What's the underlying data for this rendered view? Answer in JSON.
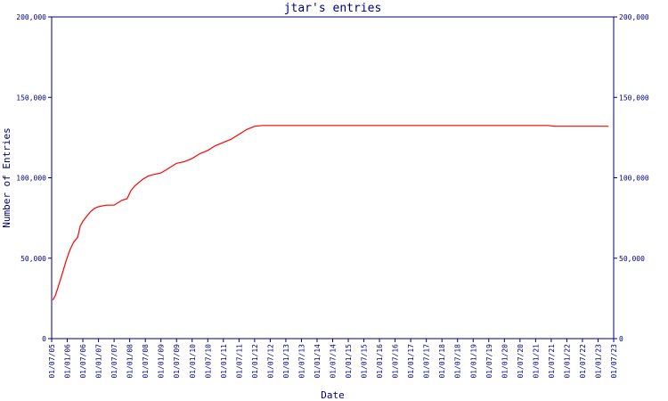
{
  "chart_data": {
    "type": "line",
    "title": "jtar's entries",
    "xlabel": "Date",
    "ylabel": "Number of Entries",
    "ylim": [
      0,
      200000
    ],
    "y_ticks": [
      0,
      50000,
      100000,
      150000,
      200000
    ],
    "y_tick_labels": [
      "0",
      "50,000",
      "100,000",
      "150,000",
      "200,000"
    ],
    "x_tick_labels": [
      "01/07/05",
      "01/01/06",
      "01/07/06",
      "01/01/07",
      "01/07/07",
      "01/01/08",
      "01/07/08",
      "01/01/09",
      "01/07/09",
      "01/01/10",
      "01/07/10",
      "01/01/11",
      "01/07/11",
      "01/01/12",
      "01/07/12",
      "01/01/13",
      "01/07/13",
      "01/01/14",
      "01/07/14",
      "01/01/15",
      "01/07/15",
      "01/01/16",
      "01/07/16",
      "01/01/17",
      "01/07/17",
      "01/01/18",
      "01/07/18",
      "01/01/19",
      "01/07/19",
      "01/01/20",
      "01/07/20",
      "01/01/21",
      "01/07/21",
      "01/01/22",
      "01/07/22",
      "01/01/23",
      "01/07/23"
    ],
    "grid": false,
    "colors": {
      "axis": "#000080",
      "line": "#ff0000",
      "text": "#000080"
    },
    "series": [
      {
        "x": [
          "2005-07-15",
          "2005-08-15",
          "2005-09-15",
          "2005-11-01",
          "2005-12-15",
          "2006-02-01",
          "2006-03-15",
          "2006-05-01",
          "2006-06-01",
          "2006-07-01",
          "2006-08-15",
          "2006-10-01",
          "2006-11-15",
          "2007-01-01",
          "2007-02-15",
          "2007-04-01",
          "2007-07-01",
          "2007-10-01",
          "2007-12-01",
          "2008-01-15",
          "2008-03-01",
          "2008-04-15",
          "2008-06-01",
          "2008-08-01",
          "2008-10-01",
          "2009-01-01",
          "2009-04-01",
          "2009-07-01",
          "2009-10-01",
          "2010-01-01",
          "2010-04-01",
          "2010-07-01",
          "2010-10-01",
          "2011-01-01",
          "2011-04-01",
          "2011-07-01",
          "2011-10-01",
          "2012-01-01",
          "2012-04-01",
          "2012-07-01",
          "2012-09-01",
          "2013-01-01",
          "2015-01-01",
          "2017-01-01",
          "2019-01-01",
          "2021-06-01",
          "2021-08-01",
          "2022-01-01",
          "2023-05-01"
        ],
        "y": [
          24000,
          27000,
          32000,
          40000,
          48000,
          55000,
          60000,
          63000,
          70000,
          73000,
          76000,
          79000,
          81000,
          82000,
          82500,
          83000,
          83000,
          86000,
          87000,
          92000,
          95000,
          97000,
          99000,
          101000,
          102000,
          103000,
          106000,
          109000,
          110000,
          112000,
          115000,
          117000,
          120000,
          122000,
          124000,
          127000,
          130000,
          132000,
          132500,
          132500,
          132500,
          132500,
          132500,
          132500,
          132500,
          132500,
          132000,
          132000,
          132000
        ]
      }
    ]
  }
}
